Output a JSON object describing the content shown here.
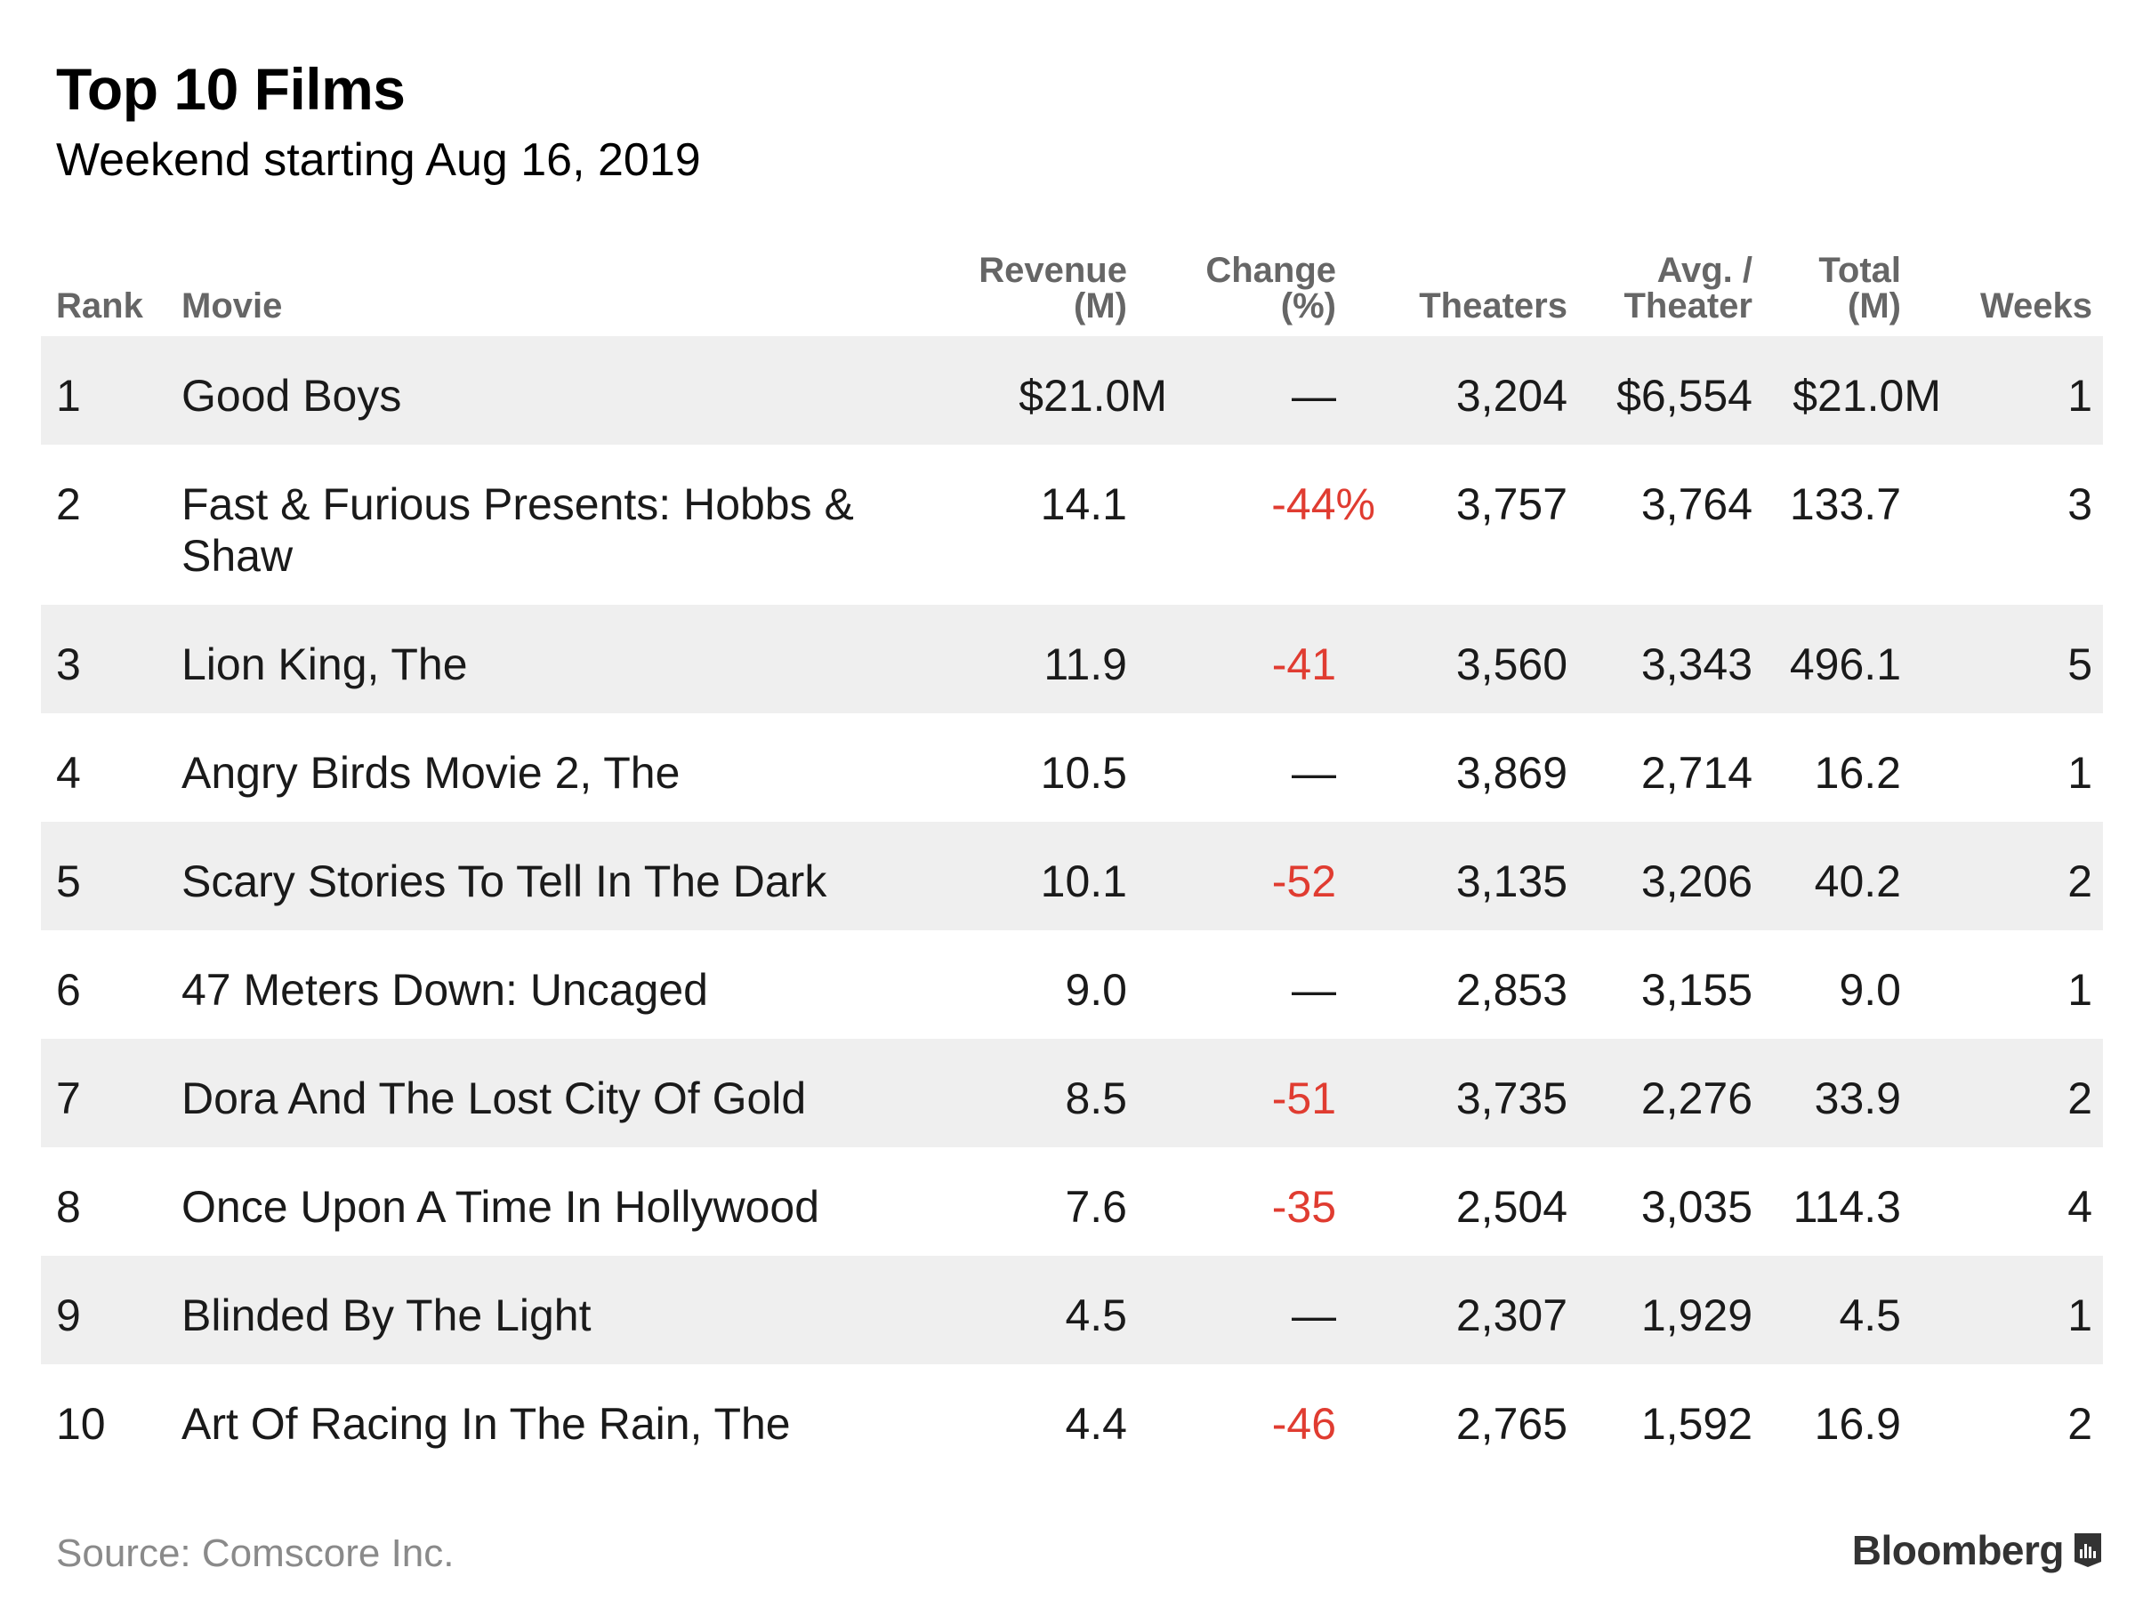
{
  "chart_data": {
    "type": "table",
    "title": "Top 10 Films",
    "subtitle": "Weekend starting Aug 16, 2019",
    "columns": [
      {
        "key": "rank",
        "label_lines": [
          "Rank"
        ]
      },
      {
        "key": "movie",
        "label_lines": [
          "Movie"
        ]
      },
      {
        "key": "revenue",
        "label_lines": [
          "Revenue",
          "(M)"
        ]
      },
      {
        "key": "change",
        "label_lines": [
          "Change",
          "(%)"
        ]
      },
      {
        "key": "theaters",
        "label_lines": [
          "Theaters"
        ]
      },
      {
        "key": "avg",
        "label_lines": [
          "Avg. /",
          "Theater"
        ]
      },
      {
        "key": "total",
        "label_lines": [
          "Total",
          "(M)"
        ]
      },
      {
        "key": "weeks",
        "label_lines": [
          "Weeks"
        ]
      }
    ],
    "rows": [
      {
        "rank": "1",
        "movie_lines": [
          "Good Boys"
        ],
        "revenue": "$21.0M",
        "change": "—",
        "theaters": "3,204",
        "avg": "$6,554",
        "total": "$21.0M",
        "weeks": "1"
      },
      {
        "rank": "2",
        "movie_lines": [
          "Fast & Furious Presents: Hobbs &",
          "Shaw"
        ],
        "revenue": "14.1",
        "change": "-44%",
        "theaters": "3,757",
        "avg": "3,764",
        "total": "133.7",
        "weeks": "3"
      },
      {
        "rank": "3",
        "movie_lines": [
          "Lion King, The"
        ],
        "revenue": "11.9",
        "change": "-41",
        "theaters": "3,560",
        "avg": "3,343",
        "total": "496.1",
        "weeks": "5"
      },
      {
        "rank": "4",
        "movie_lines": [
          "Angry Birds Movie 2, The"
        ],
        "revenue": "10.5",
        "change": "—",
        "theaters": "3,869",
        "avg": "2,714",
        "total": "16.2",
        "weeks": "1"
      },
      {
        "rank": "5",
        "movie_lines": [
          "Scary Stories To Tell In The Dark"
        ],
        "revenue": "10.1",
        "change": "-52",
        "theaters": "3,135",
        "avg": "3,206",
        "total": "40.2",
        "weeks": "2"
      },
      {
        "rank": "6",
        "movie_lines": [
          "47 Meters Down: Uncaged"
        ],
        "revenue": "9.0",
        "change": "—",
        "theaters": "2,853",
        "avg": "3,155",
        "total": "9.0",
        "weeks": "1"
      },
      {
        "rank": "7",
        "movie_lines": [
          "Dora And The Lost City Of Gold"
        ],
        "revenue": "8.5",
        "change": "-51",
        "theaters": "3,735",
        "avg": "2,276",
        "total": "33.9",
        "weeks": "2"
      },
      {
        "rank": "8",
        "movie_lines": [
          "Once Upon A Time In Hollywood"
        ],
        "revenue": "7.6",
        "change": "-35",
        "theaters": "2,504",
        "avg": "3,035",
        "total": "114.3",
        "weeks": "4"
      },
      {
        "rank": "9",
        "movie_lines": [
          "Blinded By The Light"
        ],
        "revenue": "4.5",
        "change": "—",
        "theaters": "2,307",
        "avg": "1,929",
        "total": "4.5",
        "weeks": "1"
      },
      {
        "rank": "10",
        "movie_lines": [
          "Art Of Racing In The Rain, The"
        ],
        "revenue": "4.4",
        "change": "-46",
        "theaters": "2,765",
        "avg": "1,592",
        "total": "16.9",
        "weeks": "2"
      }
    ],
    "colors": {
      "negative": "#e03c31",
      "shade": "#efefef",
      "header": "#666666"
    }
  },
  "footer": {
    "source": "Source: Comscore Inc.",
    "brand": "Bloomberg",
    "brand_icon": "bloomberg-chart-icon"
  }
}
